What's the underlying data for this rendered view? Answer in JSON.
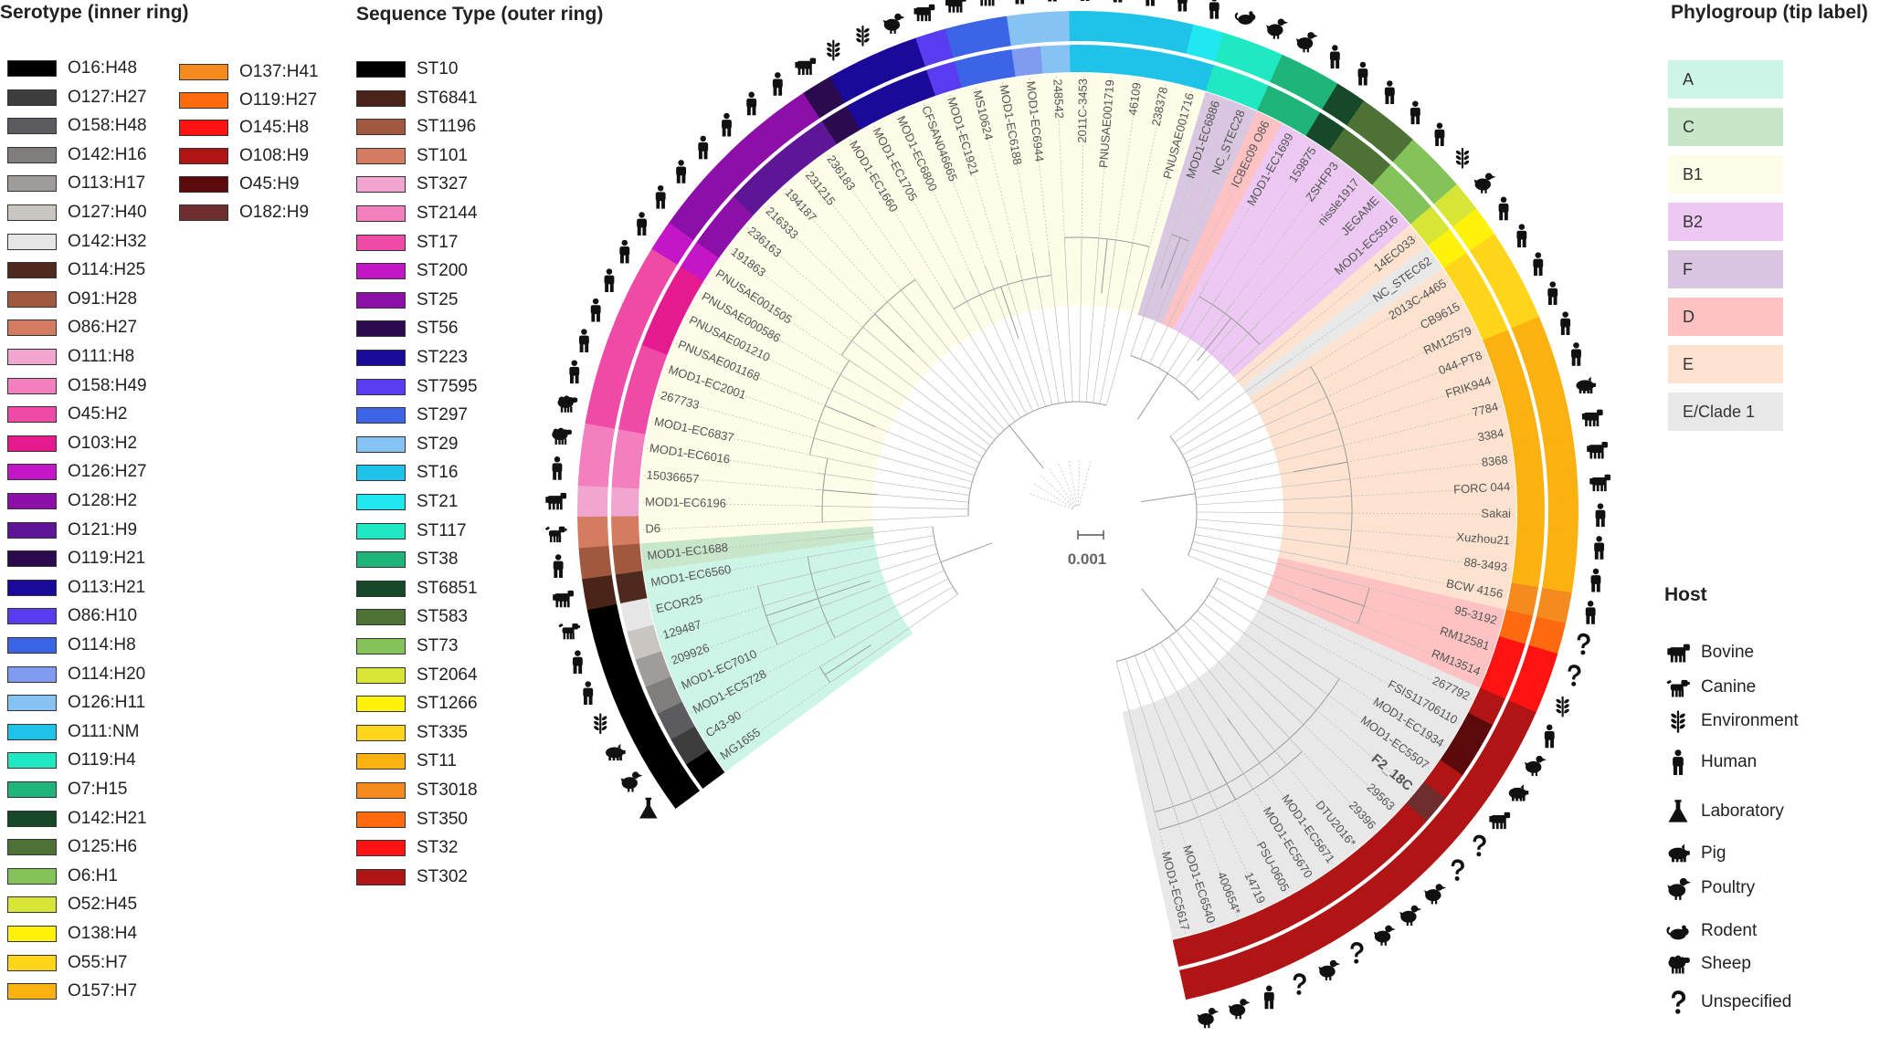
{
  "serotype_legend": {
    "title": "Serotype (inner ring)",
    "items": [
      {
        "label": "O16:H48",
        "color": "#000000"
      },
      {
        "label": "O127:H27",
        "color": "#3d3d3d"
      },
      {
        "label": "O158:H48",
        "color": "#5c5c60"
      },
      {
        "label": "O142:H16",
        "color": "#807d7d"
      },
      {
        "label": "O113:H17",
        "color": "#a19c9c"
      },
      {
        "label": "O127:H40",
        "color": "#c9c6c2"
      },
      {
        "label": "O142:H32",
        "color": "#e6e6e6"
      },
      {
        "label": "O114:H25",
        "color": "#4e2a1e"
      },
      {
        "label": "O91:H28",
        "color": "#a0583f"
      },
      {
        "label": "O86:H27",
        "color": "#d37c5f"
      },
      {
        "label": "O111:H8",
        "color": "#f0a6cf"
      },
      {
        "label": "O158:H49",
        "color": "#f47fbf"
      },
      {
        "label": "O45:H2",
        "color": "#ee4aa6"
      },
      {
        "label": "O103:H2",
        "color": "#e51a8e"
      },
      {
        "label": "O126:H27",
        "color": "#c316c7"
      },
      {
        "label": "O128:H2",
        "color": "#8c10a8"
      },
      {
        "label": "O121:H9",
        "color": "#5e1696"
      },
      {
        "label": "O119:H21",
        "color": "#2c0a4e"
      },
      {
        "label": "O113:H21",
        "color": "#1a0a9a"
      },
      {
        "label": "O86:H10",
        "color": "#5a3cf0"
      },
      {
        "label": "O114:H8",
        "color": "#3c64e6"
      },
      {
        "label": "O114:H20",
        "color": "#7f9cf0"
      },
      {
        "label": "O126:H11",
        "color": "#86c2f2"
      },
      {
        "label": "O111:NM",
        "color": "#1fc3e8"
      },
      {
        "label": "O119:H4",
        "color": "#1fe8c3"
      },
      {
        "label": "O7:H15",
        "color": "#1fb47a"
      },
      {
        "label": "O142:H21",
        "color": "#15492a"
      },
      {
        "label": "O125:H6",
        "color": "#4e7236"
      },
      {
        "label": "O6:H1",
        "color": "#84c35a"
      },
      {
        "label": "O52:H45",
        "color": "#d6e536"
      },
      {
        "label": "O138:H4",
        "color": "#fff20a"
      },
      {
        "label": "O55:H7",
        "color": "#ffd51a"
      },
      {
        "label": "O157:H7",
        "color": "#fbb10f"
      },
      {
        "label": "O137:H41",
        "color": "#f58a1f"
      },
      {
        "label": "O119:H27",
        "color": "#ff6a10"
      },
      {
        "label": "O145:H8",
        "color": "#ff1212"
      },
      {
        "label": "O108:H9",
        "color": "#b11414"
      },
      {
        "label": "O45:H9",
        "color": "#5a0a0a"
      },
      {
        "label": "O182:H9",
        "color": "#6e2e2e"
      }
    ]
  },
  "st_legend": {
    "title": "Sequence Type (outer ring)",
    "items": [
      {
        "label": "ST10",
        "color": "#000000"
      },
      {
        "label": "ST6841",
        "color": "#4a2418"
      },
      {
        "label": "ST1196",
        "color": "#a0583f"
      },
      {
        "label": "ST101",
        "color": "#d37c5f"
      },
      {
        "label": "ST327",
        "color": "#f0a6cf"
      },
      {
        "label": "ST2144",
        "color": "#f47fbf"
      },
      {
        "label": "ST17",
        "color": "#ee4aa6"
      },
      {
        "label": "ST200",
        "color": "#c316c7"
      },
      {
        "label": "ST25",
        "color": "#8c10a8"
      },
      {
        "label": "ST56",
        "color": "#2c0a4e"
      },
      {
        "label": "ST223",
        "color": "#1a0a9a"
      },
      {
        "label": "ST7595",
        "color": "#5a3cf0"
      },
      {
        "label": "ST297",
        "color": "#3c64e6"
      },
      {
        "label": "ST29",
        "color": "#86c2f2"
      },
      {
        "label": "ST16",
        "color": "#1fc3e8"
      },
      {
        "label": "ST21",
        "color": "#1fe8f0"
      },
      {
        "label": "ST117",
        "color": "#1fe8c3"
      },
      {
        "label": "ST38",
        "color": "#1fb47a"
      },
      {
        "label": "ST6851",
        "color": "#15492a"
      },
      {
        "label": "ST583",
        "color": "#4e7236"
      },
      {
        "label": "ST73",
        "color": "#84c35a"
      },
      {
        "label": "ST2064",
        "color": "#d6e536"
      },
      {
        "label": "ST1266",
        "color": "#fff20a"
      },
      {
        "label": "ST335",
        "color": "#ffd51a"
      },
      {
        "label": "ST11",
        "color": "#fbb10f"
      },
      {
        "label": "ST3018",
        "color": "#f58a1f"
      },
      {
        "label": "ST350",
        "color": "#ff6a10"
      },
      {
        "label": "ST32",
        "color": "#ff1212"
      },
      {
        "label": "ST302",
        "color": "#b11414"
      }
    ]
  },
  "phylogroup_legend": {
    "title": "Phylogroup (tip label)",
    "items": [
      {
        "label": "A",
        "color": "#ccf5e8"
      },
      {
        "label": "C",
        "color": "#c8e6c9"
      },
      {
        "label": "B1",
        "color": "#fdfde8"
      },
      {
        "label": "B2",
        "color": "#ecc8f2"
      },
      {
        "label": "F",
        "color": "#d9c6e0"
      },
      {
        "label": "D",
        "color": "#ffc2c2"
      },
      {
        "label": "E",
        "color": "#fde3cf"
      },
      {
        "label": "E/Clade 1",
        "color": "#e8e8e8"
      }
    ]
  },
  "host_legend": {
    "title": "Host",
    "items": [
      {
        "label": "Bovine",
        "icon": "bovine-icon"
      },
      {
        "label": "Canine",
        "icon": "canine-icon"
      },
      {
        "label": "Environment",
        "icon": "environment-icon"
      },
      {
        "label": "Human",
        "icon": "human-icon"
      },
      {
        "label": "Laboratory",
        "icon": "laboratory-icon"
      },
      {
        "label": "Pig",
        "icon": "pig-icon"
      },
      {
        "label": "Poultry",
        "icon": "poultry-icon"
      },
      {
        "label": "Rodent",
        "icon": "rodent-icon"
      },
      {
        "label": "Sheep",
        "icon": "sheep-icon"
      },
      {
        "label": "Unspecified",
        "icon": "unspecified-icon"
      }
    ]
  },
  "scale_bar": {
    "label": "0.001"
  },
  "tree": {
    "tips": [
      {
        "name": "MG1655",
        "pg": "A",
        "sero": "O16:H48",
        "st": "ST10",
        "host": "laboratory"
      },
      {
        "name": "C43-90",
        "pg": "A",
        "sero": "O127:H27",
        "st": "ST10",
        "host": "poultry"
      },
      {
        "name": "MOD1-EC5728",
        "pg": "A",
        "sero": "O158:H48",
        "st": "ST10",
        "host": "pig"
      },
      {
        "name": "MOD1-EC7010",
        "pg": "A",
        "sero": "O142:H16",
        "st": "ST10",
        "host": "environment"
      },
      {
        "name": "209926",
        "pg": "A",
        "sero": "O113:H17",
        "st": "ST10",
        "host": "human"
      },
      {
        "name": "129487",
        "pg": "A",
        "sero": "O127:H40",
        "st": "ST10",
        "host": "human"
      },
      {
        "name": "ECOR25",
        "pg": "A",
        "sero": "O142:H32",
        "st": "ST10",
        "host": "canine"
      },
      {
        "name": "MOD1-EC6560",
        "pg": "A",
        "sero": "O114:H25",
        "st": "ST6841",
        "host": "bovine"
      },
      {
        "name": "MOD1-EC1688",
        "pg": "C",
        "sero": "O91:H28",
        "st": "ST1196",
        "host": "human"
      },
      {
        "name": "D6",
        "pg": "B1",
        "sero": "O86:H27",
        "st": "ST101",
        "host": "canine"
      },
      {
        "name": "MOD1-EC6196",
        "pg": "B1",
        "sero": "O111:H8",
        "st": "ST327",
        "host": "bovine"
      },
      {
        "name": "15036657",
        "pg": "B1",
        "sero": "O158:H49",
        "st": "ST2144",
        "host": "human"
      },
      {
        "name": "MOD1-EC6016",
        "pg": "B1",
        "sero": "O158:H49",
        "st": "ST2144",
        "host": "sheep"
      },
      {
        "name": "MOD1-EC6837",
        "pg": "B1",
        "sero": "O45:H2",
        "st": "ST17",
        "host": "sheep"
      },
      {
        "name": "267733",
        "pg": "B1",
        "sero": "O45:H2",
        "st": "ST17",
        "host": "human"
      },
      {
        "name": "MOD1-EC2001",
        "pg": "B1",
        "sero": "O45:H2",
        "st": "ST17",
        "host": "human"
      },
      {
        "name": "PNUSAE001168",
        "pg": "B1",
        "sero": "O103:H2",
        "st": "ST17",
        "host": "human"
      },
      {
        "name": "PNUSAE001210",
        "pg": "B1",
        "sero": "O103:H2",
        "st": "ST17",
        "host": "human"
      },
      {
        "name": "PNUSAE000586",
        "pg": "B1",
        "sero": "O103:H2",
        "st": "ST17",
        "host": "human"
      },
      {
        "name": "PNUSAE001505",
        "pg": "B1",
        "sero": "O126:H27",
        "st": "ST200",
        "host": "human"
      },
      {
        "name": "191863",
        "pg": "B1",
        "sero": "O128:H2",
        "st": "ST25",
        "host": "human"
      },
      {
        "name": "236163",
        "pg": "B1",
        "sero": "O128:H2",
        "st": "ST25",
        "host": "human"
      },
      {
        "name": "216333",
        "pg": "B1",
        "sero": "O121:H9",
        "st": "ST25",
        "host": "human"
      },
      {
        "name": "194187",
        "pg": "B1",
        "sero": "O121:H9",
        "st": "ST25",
        "host": "human"
      },
      {
        "name": "231215",
        "pg": "B1",
        "sero": "O121:H9",
        "st": "ST25",
        "host": "human"
      },
      {
        "name": "236183",
        "pg": "B1",
        "sero": "O121:H9",
        "st": "ST25",
        "host": "human"
      },
      {
        "name": "MOD1-EC1660",
        "pg": "B1",
        "sero": "O119:H21",
        "st": "ST56",
        "host": "bovine"
      },
      {
        "name": "MOD1-EC1705",
        "pg": "B1",
        "sero": "O113:H21",
        "st": "ST223",
        "host": "environment"
      },
      {
        "name": "MOD1-EC6800",
        "pg": "B1",
        "sero": "O113:H21",
        "st": "ST223",
        "host": "environment"
      },
      {
        "name": "CFSAN046665",
        "pg": "B1",
        "sero": "O113:H21",
        "st": "ST223",
        "host": "poultry"
      },
      {
        "name": "MOD1-EC1921",
        "pg": "B1",
        "sero": "O86:H10",
        "st": "ST7595",
        "host": "bovine"
      },
      {
        "name": "MS10624",
        "pg": "B1",
        "sero": "O114:H8",
        "st": "ST297",
        "host": "bovine"
      },
      {
        "name": "MOD1-EC6188",
        "pg": "B1",
        "sero": "O114:H8",
        "st": "ST297",
        "host": "bovine"
      },
      {
        "name": "MOD1-EC6944",
        "pg": "B1",
        "sero": "O114:H20",
        "st": "ST29",
        "host": "human"
      },
      {
        "name": "248542",
        "pg": "B1",
        "sero": "O126:H11",
        "st": "ST29",
        "host": "human"
      },
      {
        "name": "2011C-3453",
        "pg": "B1",
        "sero": "O111:NM",
        "st": "ST16",
        "host": "human"
      },
      {
        "name": "PNUSAE001719",
        "pg": "B1",
        "sero": "O111:NM",
        "st": "ST16",
        "host": "human"
      },
      {
        "name": "46109",
        "pg": "B1",
        "sero": "O111:NM",
        "st": "ST16",
        "host": "human"
      },
      {
        "name": "238378",
        "pg": "B1",
        "sero": "O111:NM",
        "st": "ST16",
        "host": "human"
      },
      {
        "name": "PNUSAE001716",
        "pg": "B1",
        "sero": "O111:NM",
        "st": "ST21",
        "host": "human"
      },
      {
        "name": "MOD1-EC6886",
        "pg": "F",
        "sero": "O119:H4",
        "st": "ST117",
        "host": "rodent"
      },
      {
        "name": "NC_STEC28",
        "pg": "F",
        "sero": "O119:H4",
        "st": "ST117",
        "host": "poultry"
      },
      {
        "name": "ICBEc09 O86",
        "pg": "D",
        "sero": "O7:H15",
        "st": "ST38",
        "host": "poultry"
      },
      {
        "name": "MOD1-EC1699",
        "pg": "B2",
        "sero": "O7:H15",
        "st": "ST38",
        "host": "human"
      },
      {
        "name": "159875",
        "pg": "B2",
        "sero": "O142:H21",
        "st": "ST6851",
        "host": "human"
      },
      {
        "name": "ZSHFP3",
        "pg": "B2",
        "sero": "O125:H6",
        "st": "ST583",
        "host": "human"
      },
      {
        "name": "nissle1917",
        "pg": "B2",
        "sero": "O125:H6",
        "st": "ST583",
        "host": "human"
      },
      {
        "name": "JEGAME",
        "pg": "B2",
        "sero": "O6:H1",
        "st": "ST73",
        "host": "human"
      },
      {
        "name": "MOD1-EC5916",
        "pg": "B2",
        "sero": "O6:H1",
        "st": "ST73",
        "host": "environment"
      },
      {
        "name": "14EC033",
        "pg": "E",
        "sero": "O52:H45",
        "st": "ST2064",
        "host": "poultry"
      },
      {
        "name": "NC_STEC62",
        "pg": "E/Clade 1",
        "sero": "O138:H4",
        "st": "ST1266",
        "host": "human"
      },
      {
        "name": "2013C-4465",
        "pg": "E",
        "sero": "O55:H7",
        "st": "ST335",
        "host": "human"
      },
      {
        "name": "CB9615",
        "pg": "E",
        "sero": "O55:H7",
        "st": "ST335",
        "host": "human"
      },
      {
        "name": "RM12579",
        "pg": "E",
        "sero": "O55:H7",
        "st": "ST335",
        "host": "human"
      },
      {
        "name": "044-PT8",
        "pg": "E",
        "sero": "O157:H7",
        "st": "ST11",
        "host": "human"
      },
      {
        "name": "FRIK944",
        "pg": "E",
        "sero": "O157:H7",
        "st": "ST11",
        "host": "human"
      },
      {
        "name": "7784",
        "pg": "E",
        "sero": "O157:H7",
        "st": "ST11",
        "host": "pig"
      },
      {
        "name": "3384",
        "pg": "E",
        "sero": "O157:H7",
        "st": "ST11",
        "host": "bovine"
      },
      {
        "name": "8368",
        "pg": "E",
        "sero": "O157:H7",
        "st": "ST11",
        "host": "bovine"
      },
      {
        "name": "FORC 044",
        "pg": "E",
        "sero": "O157:H7",
        "st": "ST11",
        "host": "bovine"
      },
      {
        "name": "Sakai",
        "pg": "E",
        "sero": "O157:H7",
        "st": "ST11",
        "host": "human"
      },
      {
        "name": "Xuzhou21",
        "pg": "E",
        "sero": "O157:H7",
        "st": "ST11",
        "host": "human"
      },
      {
        "name": "88-3493",
        "pg": "E",
        "sero": "O157:H7",
        "st": "ST11",
        "host": "human"
      },
      {
        "name": "BCW 4156",
        "pg": "E",
        "sero": "O137:H41",
        "st": "ST3018",
        "host": "human"
      },
      {
        "name": "95-3192",
        "pg": "D",
        "sero": "O119:H27",
        "st": "ST350",
        "host": "unspecified"
      },
      {
        "name": "RM12581",
        "pg": "D",
        "sero": "O145:H8",
        "st": "ST32",
        "host": "unspecified"
      },
      {
        "name": "RM13514",
        "pg": "D",
        "sero": "O145:H8",
        "st": "ST32",
        "host": "environment"
      },
      {
        "name": "267792",
        "pg": "E/Clade 1",
        "sero": "O108:H9",
        "st": "ST302",
        "host": "human"
      },
      {
        "name": "FSIS11706110",
        "pg": "E/Clade 1",
        "sero": "O45:H9",
        "st": "ST302",
        "host": "poultry"
      },
      {
        "name": "MOD1-EC1934",
        "pg": "E/Clade 1",
        "sero": "O45:H9",
        "st": "ST302",
        "host": "pig"
      },
      {
        "name": "MOD1-EC5507",
        "pg": "E/Clade 1",
        "sero": "O108:H9",
        "st": "ST302",
        "host": "bovine"
      },
      {
        "name": "F2_18C",
        "pg": "E/Clade 1",
        "sero": "O182:H9",
        "st": "ST302",
        "host": "unspecified"
      },
      {
        "name": "29563",
        "pg": "E/Clade 1",
        "sero": "O108:H9",
        "st": "ST302",
        "host": "unspecified"
      },
      {
        "name": "29396",
        "pg": "E/Clade 1",
        "sero": "O108:H9",
        "st": "ST302",
        "host": "poultry"
      },
      {
        "name": "DTU2016*",
        "pg": "E/Clade 1",
        "sero": "O108:H9",
        "st": "ST302",
        "host": "poultry"
      },
      {
        "name": "MOD1-EC5671",
        "pg": "E/Clade 1",
        "sero": "O108:H9",
        "st": "ST302",
        "host": "poultry"
      },
      {
        "name": "MOD1-EC5670",
        "pg": "E/Clade 1",
        "sero": "O108:H9",
        "st": "ST302",
        "host": "unspecified"
      },
      {
        "name": "PSU-0605",
        "pg": "E/Clade 1",
        "sero": "O108:H9",
        "st": "ST302",
        "host": "poultry"
      },
      {
        "name": "14719",
        "pg": "E/Clade 1",
        "sero": "O108:H9",
        "st": "ST302",
        "host": "unspecified"
      },
      {
        "name": "400654*",
        "pg": "E/Clade 1",
        "sero": "O108:H9",
        "st": "ST302",
        "host": "human"
      },
      {
        "name": "MOD1-EC6540",
        "pg": "E/Clade 1",
        "sero": "O108:H9",
        "st": "ST302",
        "host": "poultry"
      },
      {
        "name": "MOD1-EC5617",
        "pg": "E/Clade 1",
        "sero": "O108:H9",
        "st": "ST302",
        "host": "poultry"
      }
    ]
  }
}
